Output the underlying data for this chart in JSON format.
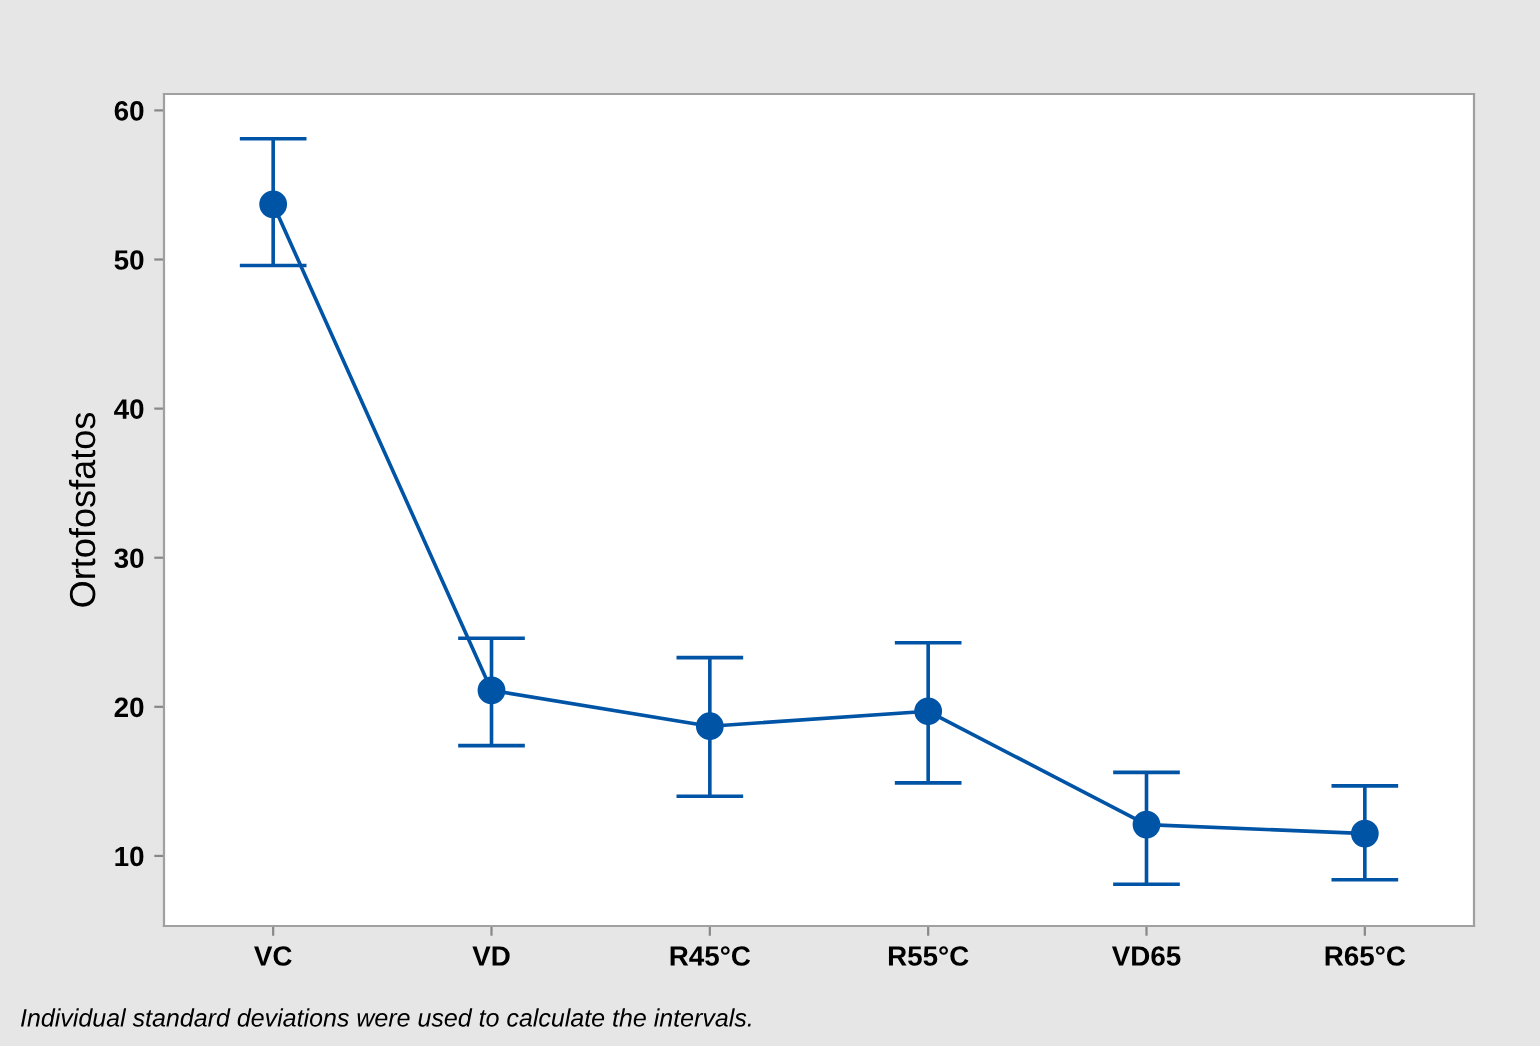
{
  "chart_data": {
    "type": "line",
    "ylabel": "Ortofosfatos",
    "categories": [
      "VC",
      "VD",
      "R45°C",
      "R55°C",
      "VD65",
      "R65°C"
    ],
    "series": [
      {
        "color": "#0054a6",
        "values": [
          53.7,
          21.1,
          18.7,
          19.7,
          12.1,
          11.5
        ],
        "errors": [
          [
            49.6,
            58.1
          ],
          [
            17.4,
            24.6
          ],
          [
            14.0,
            23.3
          ],
          [
            14.9,
            24.3
          ],
          [
            8.1,
            15.6
          ],
          [
            8.4,
            14.7
          ]
        ]
      }
    ],
    "ylim": [
      5.3,
      61.1
    ],
    "yticks": [
      10,
      20,
      30,
      40,
      50,
      60
    ],
    "marker": "circle",
    "line_style": "solid",
    "grid": false,
    "legend": false,
    "annotations": [
      "Individual standard deviations were used to calculate the intervals."
    ]
  }
}
